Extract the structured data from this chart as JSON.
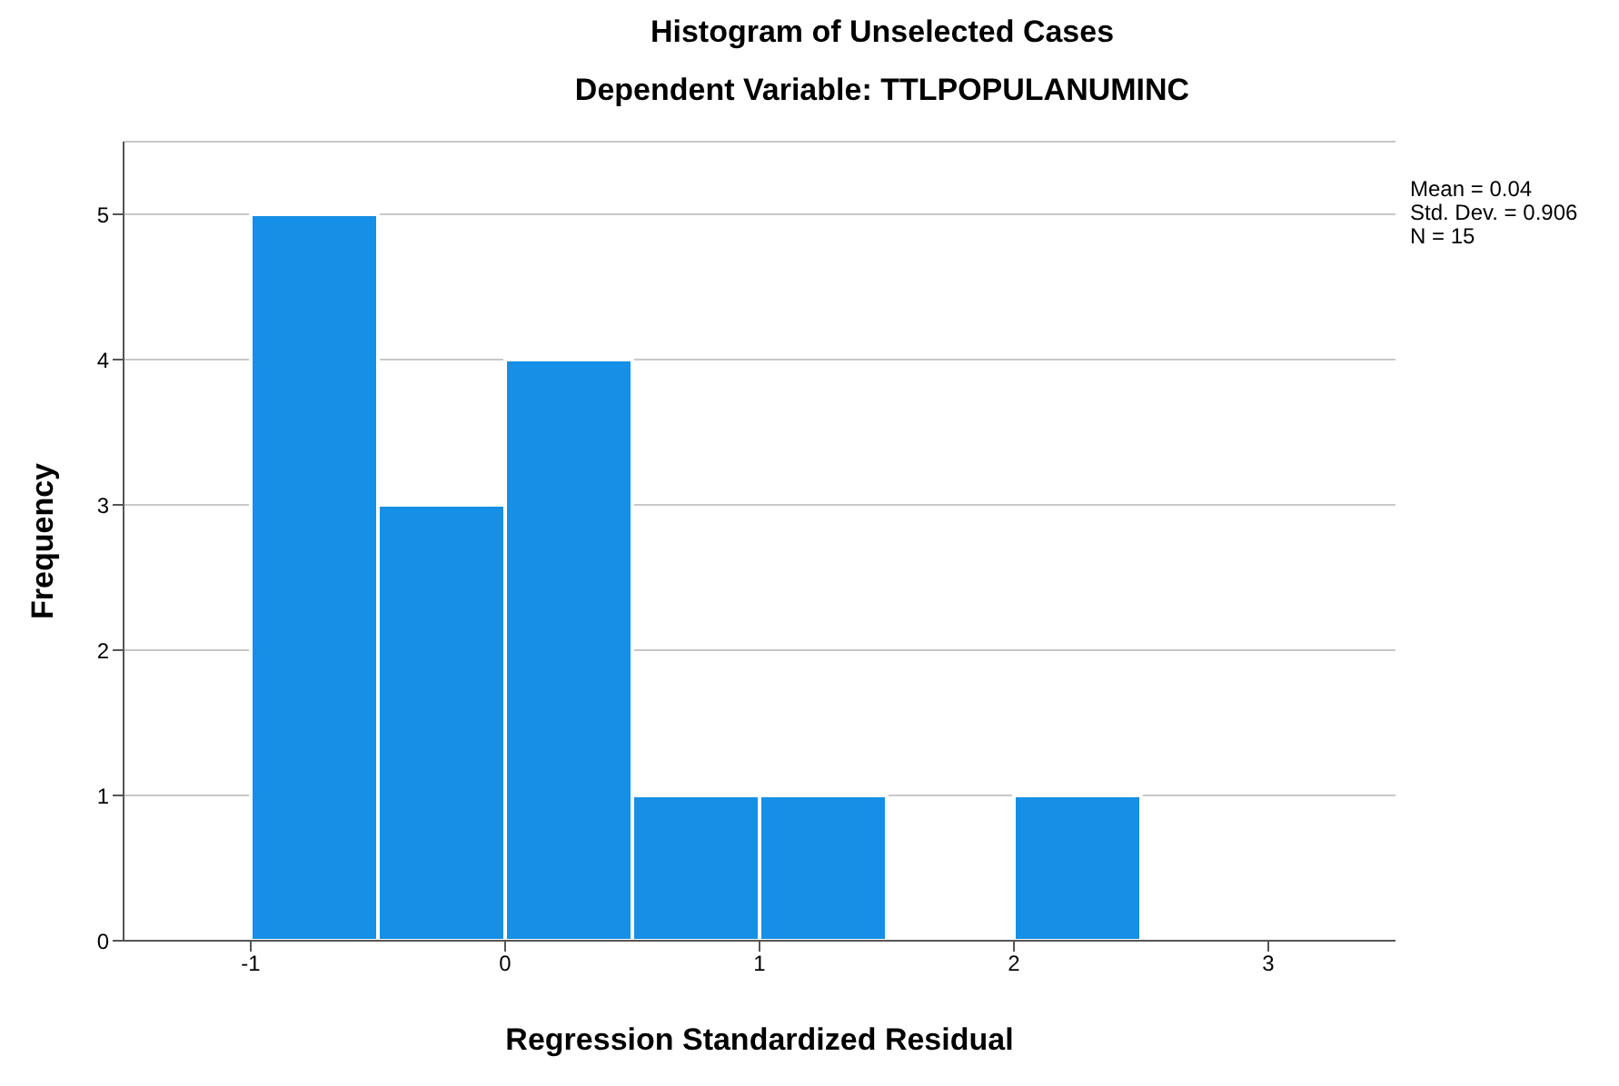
{
  "chart_data": {
    "type": "histogram",
    "title": "Histogram of Unselected Cases",
    "subtitle": "Dependent Variable: TTLPOPULANUMINC",
    "xlabel": "Regression Standardized Residual",
    "ylabel": "Frequency",
    "bins": [
      -1,
      -0.5,
      0,
      0.5,
      1,
      1.5,
      2,
      2.5
    ],
    "values": [
      5,
      3,
      4,
      1,
      1,
      0,
      1
    ],
    "color": "#1590e6",
    "xlim": [
      -1.5,
      3.5
    ],
    "xticks": [
      -1,
      0,
      1,
      2,
      3
    ],
    "ylim": [
      0,
      5.5
    ],
    "yticks": [
      0,
      1,
      2,
      3,
      4,
      5
    ],
    "grid": "y",
    "annotations": [
      "Mean = 0.04",
      "Std. Dev. = 0.906",
      "N = 15"
    ]
  }
}
